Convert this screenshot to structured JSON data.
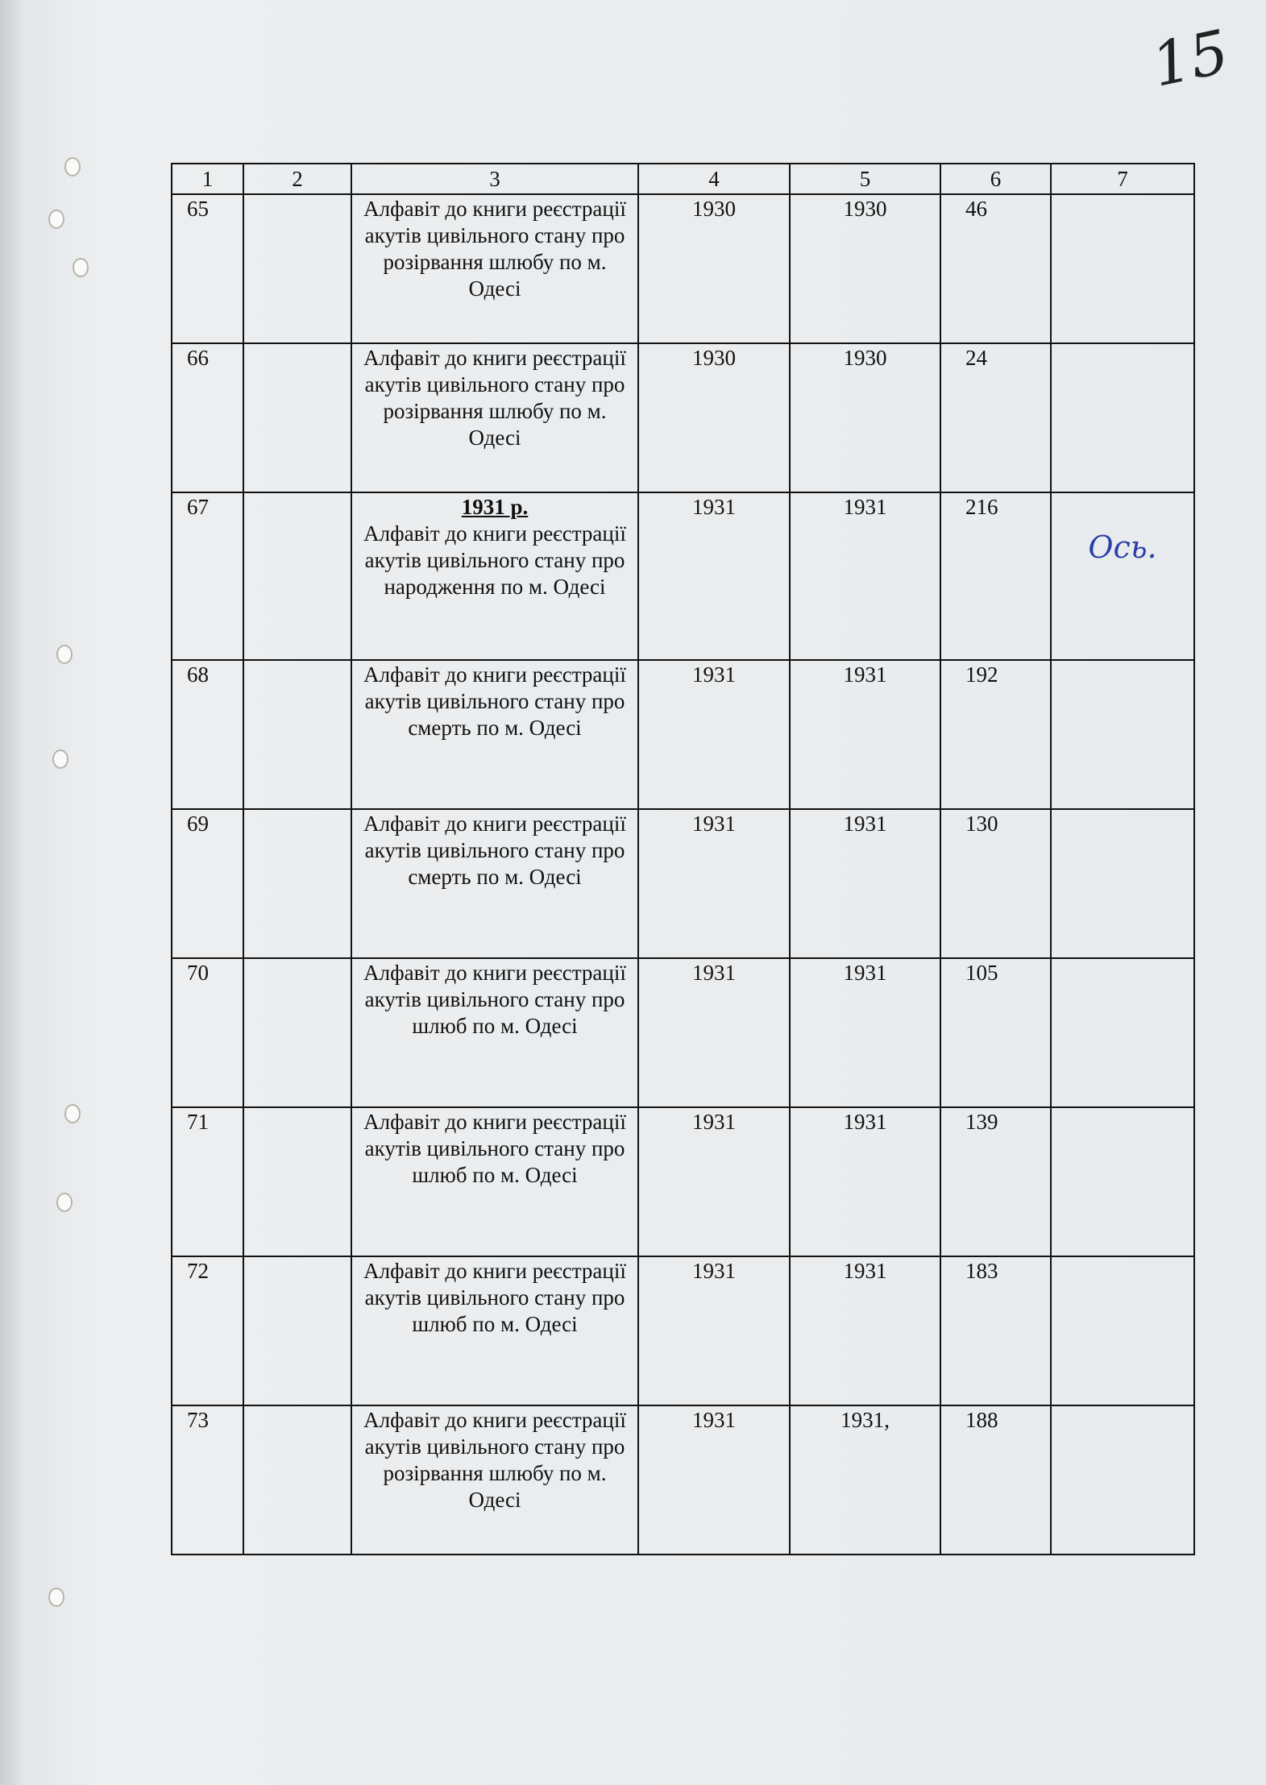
{
  "folio": "15",
  "header": [
    "1",
    "2",
    "3",
    "4",
    "5",
    "6",
    "7"
  ],
  "rows": [
    {
      "n": "65",
      "c2": "",
      "title_sub": "",
      "title": "Алфавіт до книги реєстрації акутів цивільного стану про розірвання шлюбу по м. Одесі",
      "c4": "1930",
      "c5": "1930",
      "c6": "46",
      "c7": ""
    },
    {
      "n": "66",
      "c2": "",
      "title_sub": "",
      "title": "Алфавіт до книги реєстрації акутів цивільного стану про розірвання шлюбу по м. Одесі",
      "c4": "1930",
      "c5": "1930",
      "c6": "24",
      "c7": ""
    },
    {
      "n": "67",
      "c2": "",
      "title_sub": "1931 р.",
      "title": "Алфавіт до книги реєстрації акутів цивільного стану про народження по м. Одесі",
      "c4": "1931",
      "c5": "1931",
      "c6": "216",
      "c7": "Ось."
    },
    {
      "n": "68",
      "c2": "",
      "title_sub": "",
      "title": "Алфавіт до книги реєстрації акутів цивільного стану про смерть по м. Одесі",
      "c4": "1931",
      "c5": "1931",
      "c6": "192",
      "c7": ""
    },
    {
      "n": "69",
      "c2": "",
      "title_sub": "",
      "title": "Алфавіт до книги реєстрації акутів цивільного стану про смерть по м. Одесі",
      "c4": "1931",
      "c5": "1931",
      "c6": "130",
      "c7": ""
    },
    {
      "n": "70",
      "c2": "",
      "title_sub": "",
      "title": "Алфавіт до книги реєстрації акутів цивільного стану про шлюб по м. Одесі",
      "c4": "1931",
      "c5": "1931",
      "c6": "105",
      "c7": ""
    },
    {
      "n": "71",
      "c2": "",
      "title_sub": "",
      "title": "Алфавіт до книги реєстрації акутів цивільного стану про шлюб по м. Одесі",
      "c4": "1931",
      "c5": "1931",
      "c6": "139",
      "c7": ""
    },
    {
      "n": "72",
      "c2": "",
      "title_sub": "",
      "title": "Алфавіт до книги реєстрації акутів цивільного стану про шлюб по м. Одесі",
      "c4": "1931",
      "c5": "1931",
      "c6": "183",
      "c7": ""
    },
    {
      "n": "73",
      "c2": "",
      "title_sub": "",
      "title": "Алфавіт до книги реєстрації акутів цивільного стану про розірвання шлюбу по м. Одесі",
      "c4": "1931",
      "c5": "1931,",
      "c6": "188",
      "c7": ""
    }
  ]
}
